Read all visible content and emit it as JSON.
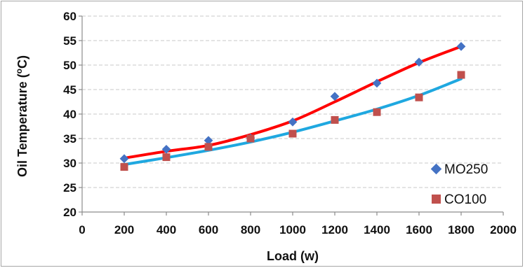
{
  "chart_data": {
    "type": "scatter",
    "title": "",
    "xlabel": "Load (w)",
    "ylabel": "Oil Temperature (oC)",
    "ylabel_main": "Oil Temperature (",
    "ylabel_sup": "o",
    "ylabel_end": "C)",
    "xlim": [
      0,
      2000
    ],
    "ylim": [
      20,
      60
    ],
    "xticks": [
      0,
      200,
      400,
      600,
      800,
      1000,
      1200,
      1400,
      1600,
      1800,
      2000
    ],
    "yticks": [
      20,
      25,
      30,
      35,
      40,
      45,
      50,
      55,
      60
    ],
    "grid": "horizontal",
    "legend_position": "bottom-right",
    "series": [
      {
        "name": "MO250",
        "marker": "diamond",
        "marker_color": "#4472c4",
        "trend_color": "#ff0000",
        "x": [
          200,
          400,
          600,
          800,
          1000,
          1200,
          1400,
          1600,
          1800
        ],
        "y": [
          30.9,
          32.8,
          34.6,
          35.1,
          38.4,
          43.6,
          46.3,
          50.6,
          53.8
        ],
        "trend": [
          31.0,
          32.4,
          33.6,
          35.8,
          38.6,
          42.5,
          46.6,
          50.5,
          53.8
        ]
      },
      {
        "name": "CO100",
        "marker": "square",
        "marker_color": "#c0504d",
        "trend_color": "#1fa8e0",
        "x": [
          200,
          400,
          600,
          800,
          1000,
          1200,
          1400,
          1600,
          1800
        ],
        "y": [
          29.2,
          31.2,
          33.3,
          35.0,
          36.0,
          38.8,
          40.4,
          43.4,
          48.0
        ],
        "trend": [
          29.7,
          31.1,
          32.6,
          34.3,
          36.3,
          38.6,
          41.0,
          43.8,
          47.2
        ]
      }
    ]
  }
}
